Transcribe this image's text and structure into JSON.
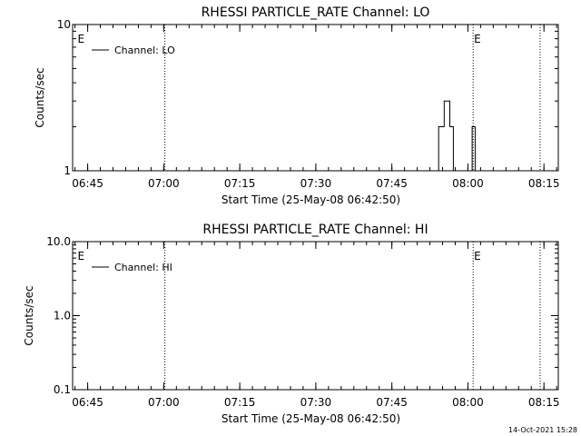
{
  "footer": {
    "timestamp": "14-Oct-2021 15:28"
  },
  "chart_data": [
    {
      "type": "line",
      "title": "RHESSI PARTICLE_RATE Channel: LO",
      "xlabel": "Start Time (25-May-08 06:42:50)",
      "ylabel": "Counts/sec",
      "yscale": "log",
      "ylim": [
        1,
        10
      ],
      "y_tick_values": [
        1,
        10
      ],
      "y_tick_labels": [
        "1",
        "10"
      ],
      "xlim_minutes_after_start": [
        -0.8,
        95.0
      ],
      "x_tick_labels": [
        "06:45",
        "07:00",
        "07:15",
        "07:30",
        "07:45",
        "08:00",
        "08:15"
      ],
      "x_tick_minutes_after_start": [
        2.17,
        17.17,
        32.17,
        47.17,
        62.17,
        77.17,
        92.17
      ],
      "legend": {
        "placement": "top-left",
        "entries": [
          "Channel: LO"
        ]
      },
      "markers": [
        {
          "label": "E",
          "minutes_after_start": 0.0
        },
        {
          "label": "E",
          "minutes_after_start": 78.2
        }
      ],
      "vertical_dotted_lines_minutes_after_start": [
        17.4,
        78.2,
        96.0
      ],
      "series": [
        {
          "name": "Channel: LO",
          "x_minutes_after_start": [
            70.9,
            71.0,
            71.4,
            71.8,
            72.1,
            72.5,
            72.8,
            73.2,
            73.6,
            74.0,
            74.3,
            74.7,
            75.0,
            75.4,
            75.8,
            76.2,
            76.5,
            76.9,
            77.2,
            77.6,
            78.0,
            78.3,
            78.6,
            79.0,
            79.3,
            79.7,
            80.0,
            80.3
          ],
          "y_counts_per_sec": [
            0.9,
            1.0,
            2.0,
            2.0,
            2.0,
            3.0,
            3.0,
            3.0,
            2.0,
            2.0,
            1.0,
            0.9,
            0.9,
            0.9,
            0.9,
            0.9,
            0.9,
            0.9,
            0.9,
            1.0,
            2.0,
            2.0,
            1.0,
            0.9,
            0.9,
            0.9,
            0.9,
            0.9
          ]
        }
      ]
    },
    {
      "type": "line",
      "title": "RHESSI PARTICLE_RATE Channel: HI",
      "xlabel": "Start Time (25-May-08 06:42:50)",
      "ylabel": "Counts/sec",
      "yscale": "log",
      "ylim": [
        0.1,
        10
      ],
      "y_tick_values": [
        0.1,
        1,
        10
      ],
      "y_tick_labels": [
        "0.1",
        "1.0",
        "10.0"
      ],
      "xlim_minutes_after_start": [
        -0.8,
        95.0
      ],
      "x_tick_labels": [
        "06:45",
        "07:00",
        "07:15",
        "07:30",
        "07:45",
        "08:00",
        "08:15"
      ],
      "x_tick_minutes_after_start": [
        2.17,
        17.17,
        32.17,
        47.17,
        62.17,
        77.17,
        92.17
      ],
      "legend": {
        "placement": "top-left",
        "entries": [
          "Channel: HI"
        ]
      },
      "markers": [
        {
          "label": "E",
          "minutes_after_start": 0.0
        },
        {
          "label": "E",
          "minutes_after_start": 78.2
        }
      ],
      "vertical_dotted_lines_minutes_after_start": [
        17.4,
        78.2,
        96.0
      ],
      "series": [
        {
          "name": "Channel: HI",
          "x_minutes_after_start": [],
          "y_counts_per_sec": []
        }
      ]
    }
  ]
}
